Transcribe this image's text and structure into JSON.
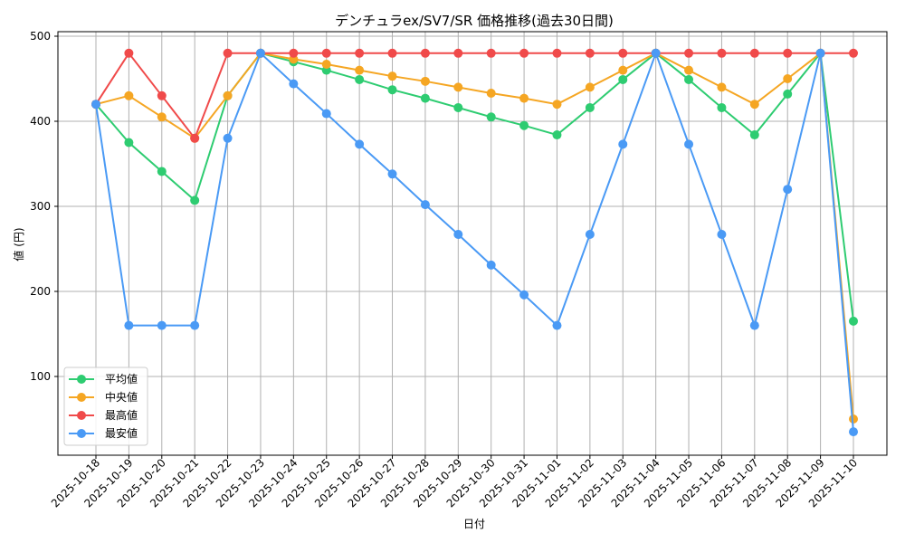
{
  "chart_data": {
    "type": "line",
    "title": "デンチュラex/SV7/SR 価格推移(過去30日間)",
    "xlabel": "日付",
    "ylabel": "値 (円)",
    "ylim": [
      12,
      505
    ],
    "yticks": [
      100,
      200,
      300,
      400,
      500
    ],
    "grid": true,
    "legend_position": "lower left",
    "categories": [
      "2025-10-18",
      "2025-10-19",
      "2025-10-20",
      "2025-10-21",
      "2025-10-22",
      "2025-10-23",
      "2025-10-24",
      "2025-10-25",
      "2025-10-26",
      "2025-10-27",
      "2025-10-28",
      "2025-10-29",
      "2025-10-30",
      "2025-10-31",
      "2025-11-01",
      "2025-11-02",
      "2025-11-03",
      "2025-11-04",
      "2025-11-05",
      "2025-11-06",
      "2025-11-07",
      "2025-11-08",
      "2025-11-09",
      "2025-11-10"
    ],
    "series": [
      {
        "name": "平均値",
        "color": "#2ecc71",
        "values": [
          420,
          375,
          341,
          307,
          430,
          480,
          470,
          460,
          449,
          437,
          427,
          416,
          405,
          395,
          384,
          416,
          449,
          480,
          449,
          416,
          384,
          432,
          480,
          165
        ]
      },
      {
        "name": "中央値",
        "color": "#f5a623",
        "values": [
          420,
          430,
          405,
          380,
          430,
          480,
          473,
          467,
          460,
          453,
          447,
          440,
          433,
          427,
          420,
          440,
          460,
          480,
          460,
          440,
          420,
          450,
          480,
          50
        ]
      },
      {
        "name": "最高値",
        "color": "#f04a4a",
        "values": [
          420,
          480,
          430,
          380,
          480,
          480,
          480,
          480,
          480,
          480,
          480,
          480,
          480,
          480,
          480,
          480,
          480,
          480,
          480,
          480,
          480,
          480,
          480,
          480
        ]
      },
      {
        "name": "最安値",
        "color": "#4a9af5",
        "values": [
          420,
          160,
          160,
          160,
          380,
          480,
          444,
          409,
          373,
          338,
          302,
          267,
          231,
          196,
          160,
          267,
          373,
          480,
          373,
          267,
          160,
          320,
          480,
          35
        ]
      }
    ]
  }
}
